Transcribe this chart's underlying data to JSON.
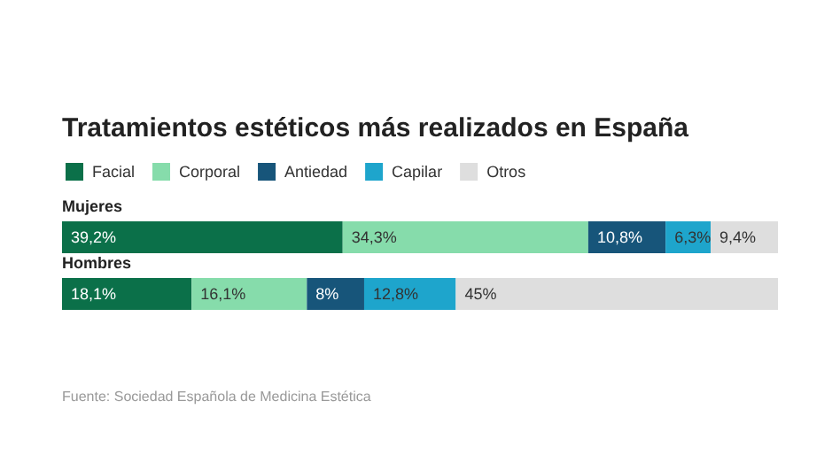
{
  "chart_data": {
    "type": "bar",
    "orientation": "horizontal",
    "stacked": true,
    "title": "Tratamientos estéticos más realizados en España",
    "categories": [
      "Mujeres",
      "Hombres"
    ],
    "series": [
      {
        "name": "Facial",
        "color": "#0b7049",
        "values": [
          39.2,
          18.1
        ],
        "value_labels": [
          "39,2%",
          "18,1%"
        ]
      },
      {
        "name": "Corporal",
        "color": "#86dcab",
        "values": [
          34.3,
          16.1
        ],
        "value_labels": [
          "34,3%",
          "16,1%"
        ]
      },
      {
        "name": "Antiedad",
        "color": "#17557a",
        "values": [
          10.8,
          8
        ],
        "value_labels": [
          "10,8%",
          "8%"
        ]
      },
      {
        "name": "Capilar",
        "color": "#1ea5cc",
        "values": [
          6.3,
          12.8
        ],
        "value_labels": [
          "6,3%",
          "12,8%"
        ]
      },
      {
        "name": "Otros",
        "color": "#dedede",
        "values": [
          9.4,
          45
        ],
        "value_labels": [
          "9,4%",
          "45%"
        ]
      }
    ],
    "xlim": [
      0,
      100
    ],
    "tick_labels": "y",
    "legend": "top left",
    "annotations": [
      "Fuente: Sociedad Española de Medicina Estética"
    ]
  }
}
